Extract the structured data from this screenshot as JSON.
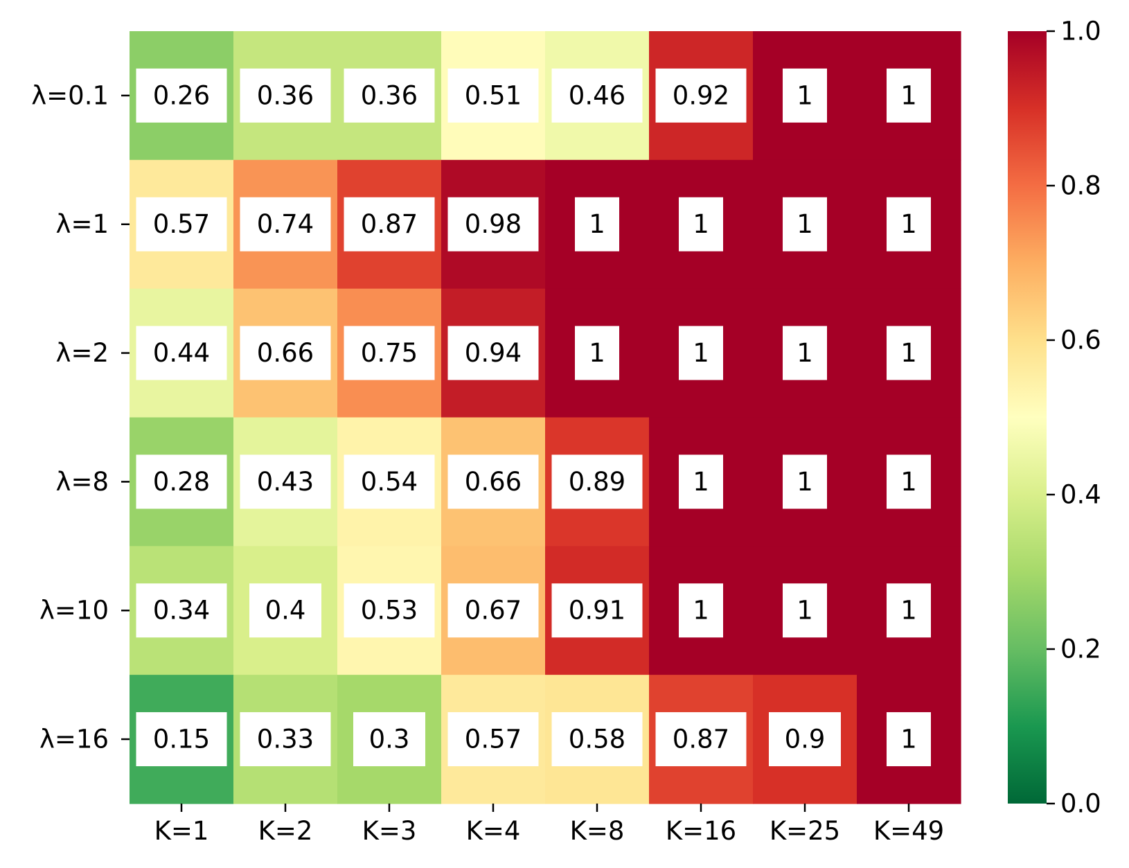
{
  "chart_data": {
    "type": "heatmap",
    "title": "",
    "xlabel": "",
    "ylabel": "",
    "x_categories": [
      "K=1",
      "K=2",
      "K=3",
      "K=4",
      "K=8",
      "K=16",
      "K=25",
      "K=49"
    ],
    "y_categories": [
      "λ=0.1",
      "λ=1",
      "λ=2",
      "λ=8",
      "λ=10",
      "λ=16"
    ],
    "values": [
      [
        0.26,
        0.36,
        0.36,
        0.51,
        0.46,
        0.92,
        1,
        1
      ],
      [
        0.57,
        0.74,
        0.87,
        0.98,
        1,
        1,
        1,
        1
      ],
      [
        0.44,
        0.66,
        0.75,
        0.94,
        1,
        1,
        1,
        1
      ],
      [
        0.28,
        0.43,
        0.54,
        0.66,
        0.89,
        1,
        1,
        1
      ],
      [
        0.34,
        0.4,
        0.53,
        0.67,
        0.91,
        1,
        1,
        1
      ],
      [
        0.15,
        0.33,
        0.3,
        0.57,
        0.58,
        0.87,
        0.9,
        1
      ]
    ],
    "value_labels": [
      [
        "0.26",
        "0.36",
        "0.36",
        "0.51",
        "0.46",
        "0.92",
        "1",
        "1"
      ],
      [
        "0.57",
        "0.74",
        "0.87",
        "0.98",
        "1",
        "1",
        "1",
        "1"
      ],
      [
        "0.44",
        "0.66",
        "0.75",
        "0.94",
        "1",
        "1",
        "1",
        "1"
      ],
      [
        "0.28",
        "0.43",
        "0.54",
        "0.66",
        "0.89",
        "1",
        "1",
        "1"
      ],
      [
        "0.34",
        "0.4",
        "0.53",
        "0.67",
        "0.91",
        "1",
        "1",
        "1"
      ],
      [
        "0.15",
        "0.33",
        "0.3",
        "0.57",
        "0.58",
        "0.87",
        "0.9",
        "1"
      ]
    ],
    "colormap": "RdYlGn_r",
    "colorbar": {
      "range": [
        0.0,
        1.0
      ],
      "ticks": [
        0.0,
        0.2,
        0.4,
        0.6,
        0.8,
        1.0
      ],
      "tick_labels": [
        "0.0",
        "0.2",
        "0.4",
        "0.6",
        "0.8",
        "1.0"
      ]
    },
    "annotation_box_color": "#ffffff"
  }
}
